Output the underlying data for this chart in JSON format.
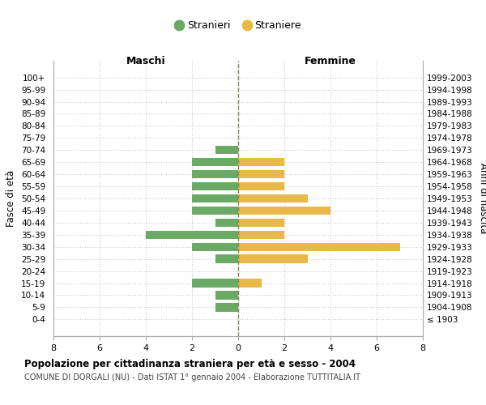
{
  "age_groups": [
    "100+",
    "95-99",
    "90-94",
    "85-89",
    "80-84",
    "75-79",
    "70-74",
    "65-69",
    "60-64",
    "55-59",
    "50-54",
    "45-49",
    "40-44",
    "35-39",
    "30-34",
    "25-29",
    "20-24",
    "15-19",
    "10-14",
    "5-9",
    "0-4"
  ],
  "birth_years": [
    "≤ 1903",
    "1904-1908",
    "1909-1913",
    "1914-1918",
    "1919-1923",
    "1924-1928",
    "1929-1933",
    "1934-1938",
    "1939-1943",
    "1944-1948",
    "1949-1953",
    "1954-1958",
    "1959-1963",
    "1964-1968",
    "1969-1973",
    "1974-1978",
    "1979-1983",
    "1984-1988",
    "1989-1993",
    "1994-1998",
    "1999-2003"
  ],
  "maschi": [
    0,
    0,
    0,
    0,
    0,
    0,
    1,
    2,
    2,
    2,
    2,
    2,
    1,
    4,
    2,
    1,
    0,
    2,
    1,
    1,
    0
  ],
  "femmine": [
    0,
    0,
    0,
    0,
    0,
    0,
    0,
    2,
    2,
    2,
    3,
    4,
    2,
    2,
    7,
    3,
    0,
    1,
    0,
    0,
    0
  ],
  "color_maschi": "#6aaa64",
  "color_femmine": "#e8b84b",
  "background_color": "#ffffff",
  "grid_color": "#cccccc",
  "title": "Popolazione per cittadinanza straniera per età e sesso - 2004",
  "subtitle": "COMUNE DI DORGALI (NU) - Dati ISTAT 1° gennaio 2004 - Elaborazione TUTTITALIA.IT",
  "xlabel_left": "Maschi",
  "xlabel_right": "Femmine",
  "ylabel_left": "Fasce di età",
  "ylabel_right": "Anni di nascita",
  "legend_maschi": "Stranieri",
  "legend_femmine": "Straniere",
  "xlim": 8,
  "bar_height": 0.7
}
